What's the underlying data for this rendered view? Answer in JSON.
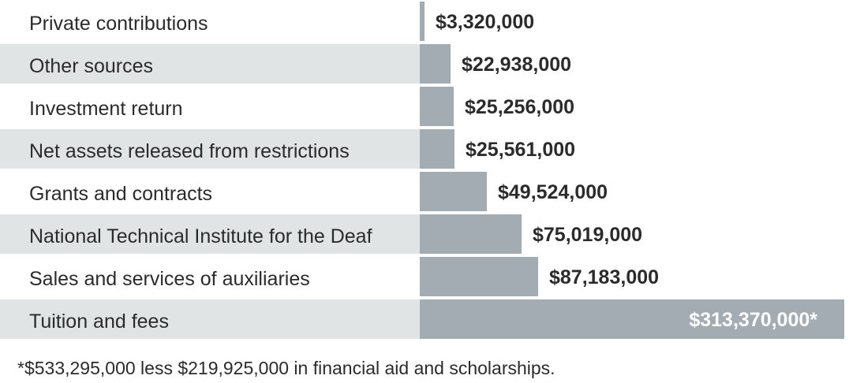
{
  "chart_data": {
    "type": "bar",
    "orientation": "horizontal",
    "categories": [
      "Private contributions",
      "Other sources",
      "Investment return",
      "Net assets released from restrictions",
      "Grants and contracts",
      "National Technical Institute for the Deaf",
      "Sales and services of auxiliaries",
      "Tuition and fees"
    ],
    "values": [
      3320000,
      22938000,
      25256000,
      25561000,
      49524000,
      75019000,
      87183000,
      313370000
    ],
    "value_labels": [
      "$3,320,000",
      "$22,938,000",
      "$25,256,000",
      "$25,561,000",
      "$49,524,000",
      "$75,019,000",
      "$87,183,000",
      "$313,370,000*"
    ],
    "title": "",
    "xlabel": "",
    "ylabel": "",
    "xlim": [
      0,
      313370000
    ],
    "grid": false,
    "legend": "none",
    "colors": {
      "bar": "#a3acb2",
      "band_alt": "#e1e4e5",
      "band": "#ffffff",
      "text": "#2b2b2b",
      "text_inside": "#ffffff"
    }
  },
  "footnote": "*$533,295,000 less $219,925,000 in financial aid and scholarships."
}
